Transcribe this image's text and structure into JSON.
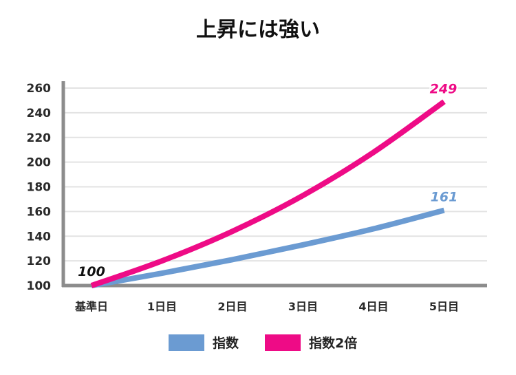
{
  "title": "上昇には強い",
  "chart_data": {
    "type": "line",
    "title": "上昇には強い",
    "categories": [
      "基準日",
      "1日目",
      "2日目",
      "3日目",
      "4日目",
      "5日目"
    ],
    "ylim": [
      100,
      260
    ],
    "yticks": [
      100,
      120,
      140,
      160,
      180,
      200,
      220,
      240,
      260
    ],
    "grid": true,
    "legend_position": "bottom",
    "series": [
      {
        "name": "指数",
        "color": "#6b9bd2",
        "values": [
          100,
          110,
          121,
          133,
          146,
          161
        ]
      },
      {
        "name": "指数2倍",
        "color": "#ee0b86",
        "values": [
          100,
          120,
          144,
          173,
          208,
          249
        ]
      }
    ],
    "annotations": [
      {
        "text": "100",
        "category": "基準日",
        "value": 100,
        "color": "#111111"
      },
      {
        "text": "161",
        "category": "5日目",
        "value": 161,
        "color": "#6b9bd2"
      },
      {
        "text": "249",
        "category": "5日目",
        "value": 249,
        "color": "#ee0b86"
      }
    ]
  }
}
